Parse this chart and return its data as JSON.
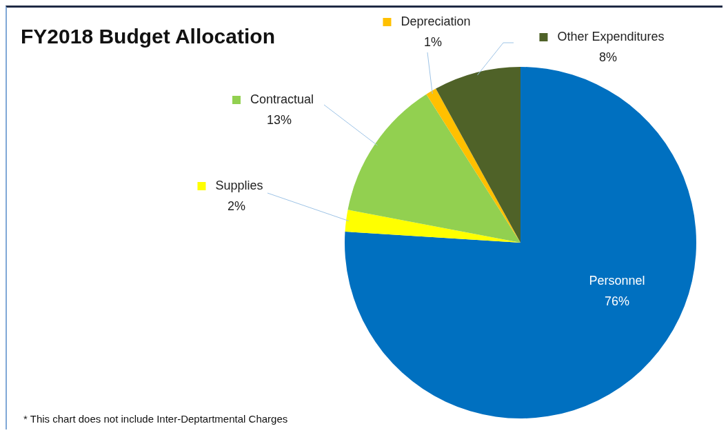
{
  "chart_data": {
    "type": "pie",
    "title": "FY2018 Budget Allocation",
    "categories": [
      "Personnel",
      "Supplies",
      "Contractual",
      "Depreciation",
      "Other Expenditures"
    ],
    "values": [
      76,
      2,
      13,
      1,
      8
    ],
    "value_labels": [
      "76%",
      "2%",
      "13%",
      "1%",
      "8%"
    ],
    "colors": [
      "#0070c0",
      "#ffff00",
      "#92d050",
      "#ffc000",
      "#4f6228"
    ],
    "legend": "top",
    "annotations": [
      "* This chart does not include Inter-Deptartmental Charges"
    ]
  }
}
